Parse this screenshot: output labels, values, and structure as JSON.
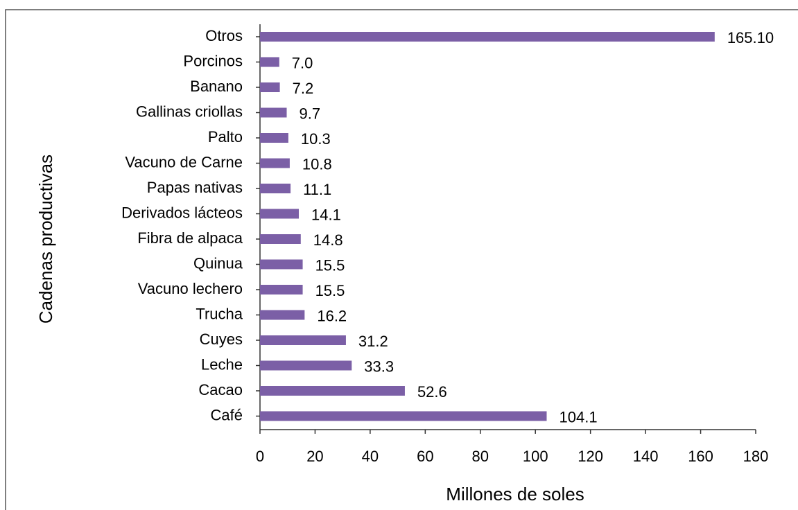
{
  "chart_data": {
    "type": "bar",
    "orientation": "horizontal",
    "x_label": "Millones de soles",
    "y_label": "Cadenas productivas",
    "categories": [
      "Otros",
      "Porcinos",
      "Banano",
      "Gallinas criollas",
      "Palto",
      "Vacuno de Carne",
      "Papas nativas",
      "Derivados lácteos",
      "Fibra de alpaca",
      "Quinua",
      "Vacuno lechero",
      "Trucha",
      "Cuyes",
      "Leche",
      "Cacao",
      "Café"
    ],
    "values": [
      165.1,
      7.0,
      7.2,
      9.7,
      10.3,
      10.8,
      11.1,
      14.1,
      14.8,
      15.5,
      15.5,
      16.2,
      31.2,
      33.3,
      52.6,
      104.1
    ],
    "value_labels": [
      "165.10",
      "7.0",
      "7.2",
      "9.7",
      "10.3",
      "10.8",
      "11.1",
      "14.1",
      "14.8",
      "15.5",
      "15.5",
      "16.2",
      "31.2",
      "33.3",
      "52.6",
      "104.1"
    ],
    "color": "#7b5fa6",
    "xlim": [
      0,
      180
    ],
    "xticks": [
      0,
      20,
      40,
      60,
      80,
      100,
      120,
      140,
      160,
      180
    ]
  }
}
